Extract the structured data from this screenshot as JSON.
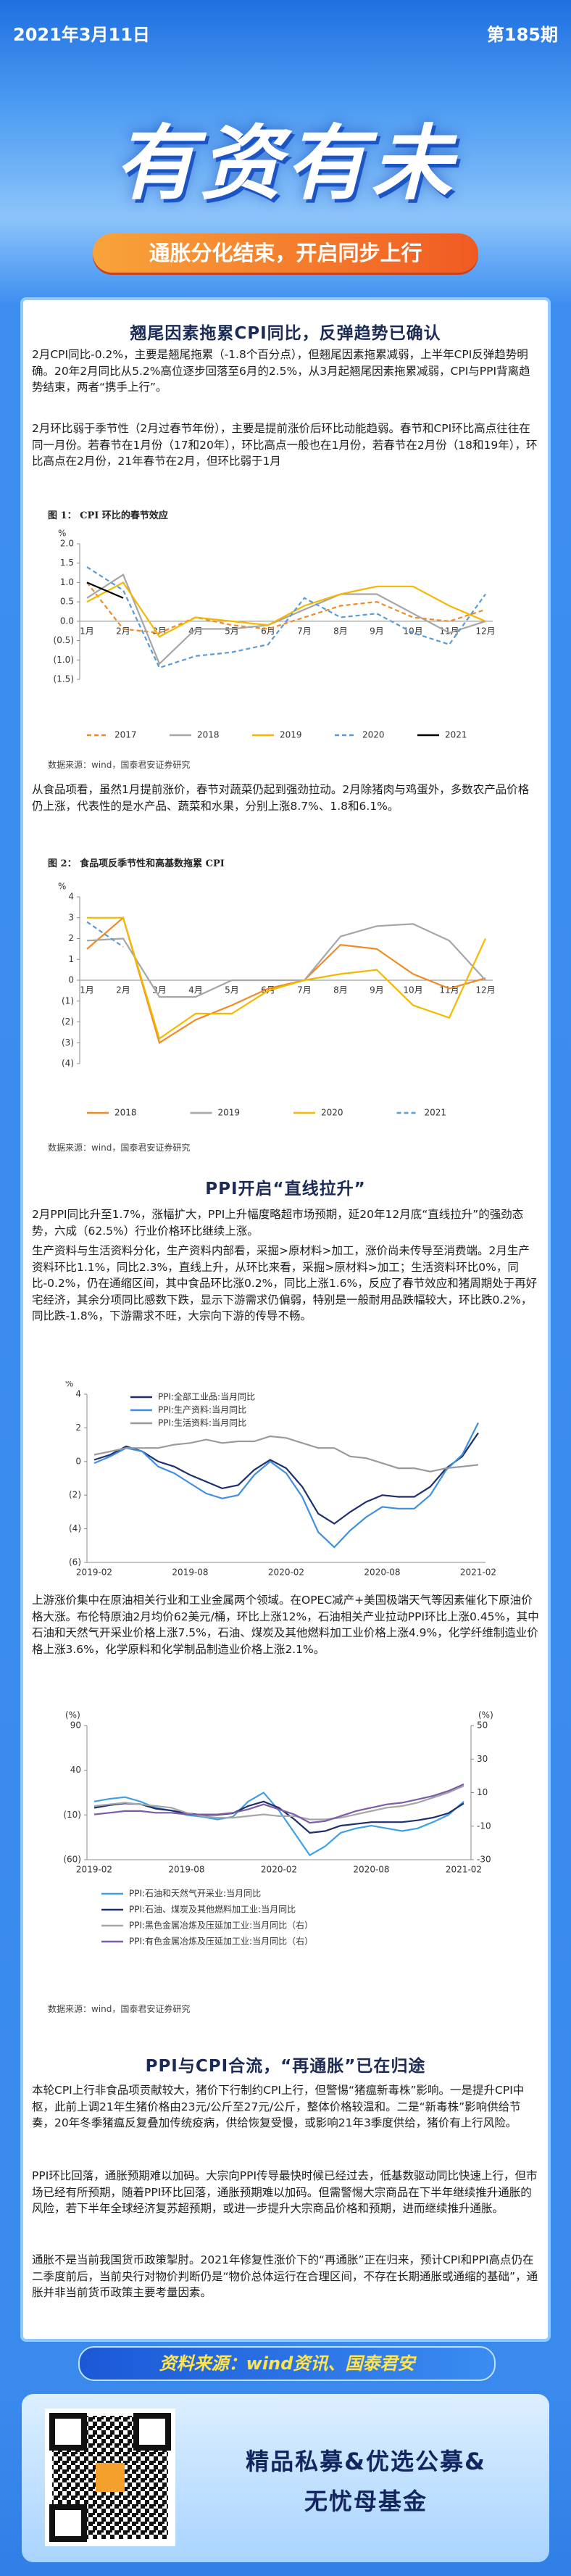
{
  "header": {
    "date": "2021年3月11日",
    "issue": "第185期",
    "title": "有资有未",
    "subtitle": "通胀分化结束，开启同步上行"
  },
  "sections": [
    {
      "heading": "翘尾因素拖累CPI同比，反弹趋势已确认",
      "paragraphs": [
        "2月CPI同比-0.2%，主要是翘尾拖累（-1.8个百分点），但翘尾因素拖累减弱，上半年CPI反弹趋势明确。20年2月同比从5.2%高位逐步回落至6月的2.5%，从3月起翘尾因素拖累减弱，CPI与PPI背离趋势结束，两者“携手上行”。",
        "2月环比弱于季节性（2月过春节年份），主要是提前涨价后环比动能趋弱。春节和CPI环比高点往往在同一月份。若春节在1月份（17和20年），环比高点一般也在1月份，若春节在2月份（18和19年），环比高点在2月份，21年春节在2月，但环比弱于1月",
        "从食品项看，虽然1月提前涨价，春节对蔬菜仍起到强劲拉动。2月除猪肉与鸡蛋外，多数农产品价格仍上涨，代表性的是水产品、蔬菜和水果，分别上涨8.7%、1.8和6.1%。"
      ]
    },
    {
      "heading": "PPI开启“直线拉升”",
      "paragraphs": [
        "2月PPI同比升至1.7%，涨幅扩大，PPI上升幅度略超市场预期，延20年12月底“直线拉升”的强劲态势，六成（62.5%）行业价格环比继续上涨。",
        "生产资料与生活资料分化，生产资料内部看，采掘>原材料>加工，涨价尚未传导至消费端。2月生产资料环比1.1%，同比2.3%，直线上升，从环比来看，采掘>原材料>加工；生活资料环比0%，同比-0.2%，仍在通缩区间，其中食品环比涨0.2%，同比上涨1.6%，反应了春节效应和猪周期处于再好宅经济，其余分项同比感数下跌，显示下游需求仍偏弱，特别是一般耐用品跌幅较大，环比跌0.2%，同比跌-1.8%，下游需求不旺，大宗向下游的传导不畅。",
        "上游涨价集中在原油相关行业和工业金属两个领域。在OPEC减产+美国极端天气等因素催化下原油价格大涨。布伦特原油2月均价62美元/桶，环比上涨12%，石油相关产业拉动PPI环比上涨0.45%，其中石油和天然气开采业价格上涨7.5%，石油、煤炭及其他燃料加工业价格上涨4.9%，化学纤维制造业价格上涨3.6%，化学原料和化学制品制造业价格上涨2.1%。"
      ]
    },
    {
      "heading": "PPI与CPI合流，“再通胀”已在归途",
      "paragraphs": [
        "本轮CPI上行非食品项贡献较大，猪价下行制约CPI上行，但警惕“猪瘟新毒株”影响。一是提升CPI中枢，此前上调21年生猪价格由23元/公斤至27元/公斤，整体价格较温和。二是“新毒株”影响供给节奏，20年冬季猪瘟反复叠加传统疫病，供给恢复受慢，或影响21年3季度供给，猪价有上行风险。",
        "PPI环比回落，通胀预期难以加码。大宗向PPI传导最快时候已经过去，低基数驱动同比快速上行，但市场已经有所预期，随着PPI环比回落，通胀预期难以加码。但需警惕大宗商品在下半年继续推升通胀的风险，若下半年全球经济复苏超预期，或进一步提升大宗商品价格和预期，进而继续推升通胀。",
        "通胀不是当前我国货币政策掣肘。2021年修复性涨价下的“再通胀”正在归来，预计CPI和PPI高点仍在二季度前后，当前央行对物价判断仍是“物价总体运行在合理区间，不存在长期通胀或通缩的基础”，通胀并非当前货币政策主要考量因素。"
      ]
    }
  ],
  "chart_data": [
    {
      "type": "line",
      "title": "图 1： CPI 环比的春节效应",
      "y_label": "%",
      "source": "数据来源：wind，国泰君安证券研究",
      "categories": [
        "1月",
        "2月",
        "3月",
        "4月",
        "5月",
        "6月",
        "7月",
        "8月",
        "9月",
        "10月",
        "11月",
        "12月"
      ],
      "ylim": [
        -1.5,
        2
      ],
      "yticks": [
        {
          "value": 2,
          "label": "2.0"
        },
        1.5,
        {
          "value": 1,
          "label": "1.0"
        },
        0.5,
        {
          "value": 0,
          "label": "0.0"
        },
        {
          "value": -0.5,
          "label": "(0.5)"
        },
        {
          "value": -1,
          "label": "(1.0)"
        },
        {
          "value": -1.5,
          "label": "(1.5)"
        }
      ],
      "x_axis_at_zero": true,
      "legend": "bottom",
      "grid": false,
      "series": [
        {
          "name": "2017",
          "color": "#f08a24",
          "dash": true,
          "values": [
            1.0,
            -0.2,
            -0.3,
            0.1,
            -0.1,
            -0.2,
            0.1,
            0.4,
            0.5,
            0.1,
            0,
            0.3
          ]
        },
        {
          "name": "2018",
          "color": "#a6a6a6",
          "dash": false,
          "values": [
            0.6,
            1.2,
            -1.1,
            -0.2,
            -0.2,
            -0.1,
            0.3,
            0.7,
            0.7,
            0.2,
            -0.3,
            0
          ]
        },
        {
          "name": "2019",
          "color": "#f5b800",
          "dash": false,
          "values": [
            0.5,
            1.0,
            -0.4,
            0.1,
            0,
            -0.1,
            0.4,
            0.7,
            0.9,
            0.9,
            0.4,
            0
          ]
        },
        {
          "name": "2020",
          "color": "#5b9bd5",
          "dash": true,
          "values": [
            1.4,
            0.8,
            -1.2,
            -0.9,
            -0.8,
            -0.6,
            0.6,
            0.1,
            0.2,
            -0.3,
            -0.6,
            0.7
          ]
        },
        {
          "name": "2021",
          "color": "#000000",
          "dash": false,
          "values": [
            1.0,
            0.6,
            null,
            null,
            null,
            null,
            null,
            null,
            null,
            null,
            null,
            null
          ]
        }
      ]
    },
    {
      "type": "line",
      "title": "图 2： 食品项反季节性和高基数拖累 CPI",
      "y_label": "%",
      "source": "数据来源：wind，国泰君安证券研究",
      "categories": [
        "1月",
        "2月",
        "3月",
        "4月",
        "5月",
        "6月",
        "7月",
        "8月",
        "9月",
        "10月",
        "11月",
        "12月"
      ],
      "ylim": [
        -4,
        4
      ],
      "yticks": [
        4,
        3,
        2,
        1,
        0,
        {
          "value": -1,
          "label": "(1)"
        },
        {
          "value": -2,
          "label": "(2)"
        },
        {
          "value": -3,
          "label": "(3)"
        },
        {
          "value": -4,
          "label": "(4)"
        }
      ],
      "x_axis_at_zero": true,
      "legend": "bottom",
      "grid": false,
      "series": [
        {
          "name": "2018",
          "color": "#f08a24",
          "dash": false,
          "values": [
            1.5,
            3.0,
            -3.0,
            -1.9,
            -1.2,
            -0.4,
            0,
            1.7,
            1.5,
            0.3,
            -0.4,
            0.1
          ]
        },
        {
          "name": "2019",
          "color": "#a6a6a6",
          "dash": false,
          "values": [
            1.9,
            2.0,
            -0.8,
            -0.8,
            0,
            0,
            0,
            2.1,
            2.6,
            2.7,
            1.9,
            0
          ]
        },
        {
          "name": "2020",
          "color": "#f5b800",
          "dash": false,
          "values": [
            3.0,
            3.0,
            -2.8,
            -1.6,
            -1.6,
            -0.5,
            0,
            0.3,
            0.5,
            -1.2,
            -1.8,
            2.0
          ]
        },
        {
          "name": "2021",
          "color": "#5b9bd5",
          "dash": true,
          "values": [
            2.8,
            1.6,
            null,
            null,
            null,
            null,
            null,
            null,
            null,
            null,
            null,
            null
          ]
        }
      ]
    },
    {
      "type": "line",
      "y_label": "%",
      "categories": [
        "2019-02",
        null,
        null,
        null,
        null,
        null,
        "2019-08",
        null,
        null,
        null,
        null,
        null,
        "2020-02",
        null,
        null,
        null,
        null,
        null,
        "2020-08",
        null,
        null,
        null,
        null,
        null,
        "2021-02"
      ],
      "ylim": [
        -6,
        4
      ],
      "yticks": [
        4,
        2,
        0,
        {
          "value": -2,
          "label": "(2)"
        },
        {
          "value": -4,
          "label": "(4)"
        },
        {
          "value": -6,
          "label": "(6)"
        }
      ],
      "x_axis_at_zero": false,
      "legend": "upper left",
      "grid": false,
      "series": [
        {
          "name": "PPI:全部工业品:当月同比",
          "color": "#1f2f6b",
          "dash": false,
          "values": [
            0.1,
            0.4,
            0.9,
            0.6,
            0,
            -0.3,
            -0.8,
            -1.2,
            -1.6,
            -1.4,
            -0.5,
            0.1,
            -0.4,
            -1.5,
            -3.1,
            -3.7,
            -3.0,
            -2.4,
            -2.0,
            -2.1,
            -2.1,
            -1.5,
            -0.4,
            0.3,
            1.7
          ]
        },
        {
          "name": "PPI:生产资料:当月同比",
          "color": "#3f8fe0",
          "dash": false,
          "values": [
            -0.1,
            0.3,
            0.8,
            0.6,
            -0.3,
            -0.7,
            -1.3,
            -1.9,
            -2.2,
            -2.0,
            -0.8,
            0,
            -0.7,
            -2.1,
            -4.2,
            -5.1,
            -4.1,
            -3.3,
            -2.7,
            -2.8,
            -2.8,
            -2.0,
            -0.5,
            0.4,
            2.3
          ]
        },
        {
          "name": "PPI:生活资料:当月同比",
          "color": "#9a9a9a",
          "dash": false,
          "values": [
            0.4,
            0.6,
            0.8,
            0.8,
            0.8,
            1.0,
            1.1,
            1.3,
            1.1,
            1.2,
            1.2,
            1.5,
            1.4,
            1.1,
            0.8,
            0.8,
            0.3,
            0.2,
            -0.1,
            -0.4,
            -0.4,
            -0.6,
            -0.4,
            -0.3,
            -0.2
          ]
        }
      ]
    },
    {
      "type": "line",
      "y_label": "(%)",
      "y2_label": "(%)",
      "source": "数据来源：wind，国泰君安证券研究",
      "categories": [
        "2019-02",
        null,
        null,
        null,
        null,
        null,
        "2019-08",
        null,
        null,
        null,
        null,
        null,
        "2020-02",
        null,
        null,
        null,
        null,
        null,
        "2020-08",
        null,
        null,
        null,
        null,
        null,
        "2021-02"
      ],
      "ylim": [
        -60,
        90
      ],
      "yticks": [
        90,
        40,
        {
          "value": -10,
          "label": "(10)"
        },
        {
          "value": -60,
          "label": "(60)"
        }
      ],
      "y2lim": [
        -30,
        50
      ],
      "y2ticks": [
        50,
        30,
        10,
        -10,
        -30
      ],
      "x_axis_at_zero": false,
      "legend": "bottom",
      "grid": false,
      "series": [
        {
          "name": "PPI:石油和天然气开采业:当月同比",
          "color": "#3fa0e8",
          "dash": false,
          "values": [
            5,
            8,
            10,
            5,
            -2,
            -5,
            -10,
            -12,
            -15,
            -12,
            5,
            15,
            -5,
            -30,
            -55,
            -45,
            -30,
            -25,
            -22,
            -25,
            -28,
            -25,
            -18,
            -10,
            5
          ]
        },
        {
          "name": "PPI:石油、煤炭及其他燃料加工业:当月同比",
          "color": "#1f2f6b",
          "dash": false,
          "values": [
            -2,
            1,
            3,
            2,
            -3,
            -5,
            -8,
            -10,
            -10,
            -8,
            0,
            5,
            -2,
            -15,
            -30,
            -28,
            -22,
            -20,
            -18,
            -18,
            -18,
            -16,
            -13,
            -8,
            3
          ]
        },
        {
          "name": "PPI:黑色金属冶炼及压延加工业:当月同比（右）",
          "color": "#a6a6a6",
          "dash": false,
          "axis": "y2",
          "values": [
            2,
            3,
            4,
            3,
            2,
            1,
            -2,
            -4,
            -5,
            -5,
            -4,
            -3,
            -4,
            -4,
            -6,
            -6,
            -5,
            -3,
            -1,
            1,
            2,
            4,
            7,
            10,
            14
          ]
        },
        {
          "name": "PPI:有色金属冶炼及压延加工业:当月同比（右）",
          "color": "#7d5ba6",
          "dash": false,
          "axis": "y2",
          "values": [
            -3,
            -2,
            -1,
            -1,
            -2,
            -2,
            -3,
            -3,
            -3,
            -2,
            0,
            3,
            0,
            -3,
            -8,
            -7,
            -4,
            -1,
            1,
            3,
            4,
            6,
            8,
            11,
            15
          ]
        }
      ]
    }
  ],
  "footer": {
    "source": "资料来源：wind资讯、国泰君安",
    "slogan": [
      "精品私募&优选公募&",
      "无忧母基金"
    ]
  }
}
